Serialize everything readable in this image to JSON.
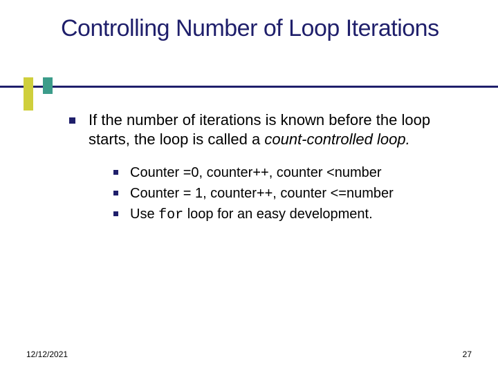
{
  "colors": {
    "title_text": "#1f1f6b",
    "title_underline": "#1f1f6b",
    "accent_yellow": "#cfcf3c",
    "accent_teal": "#3c9c8a",
    "bullet": "#1f1f6b",
    "body_text": "#000000",
    "background": "#ffffff"
  },
  "typography": {
    "title_fontsize": 34,
    "l1_fontsize": 22,
    "l2_fontsize": 20,
    "footer_fontsize": 12,
    "font_family": "Verdana",
    "mono_family": "Courier New"
  },
  "title": "Controlling Number of Loop Iterations",
  "level1": {
    "text_pre": "If the number of iterations is known before the loop starts, the loop is called a ",
    "text_italic": "count-controlled loop.",
    "text_post": ""
  },
  "level2": [
    {
      "text": "Counter =0, counter++, counter <number"
    },
    {
      "text": "Counter = 1, counter++, counter <=number"
    },
    {
      "pre": "Use ",
      "code": "for",
      "post": " loop for an easy development."
    }
  ],
  "footer": {
    "date": "12/12/2021",
    "page": "27"
  }
}
